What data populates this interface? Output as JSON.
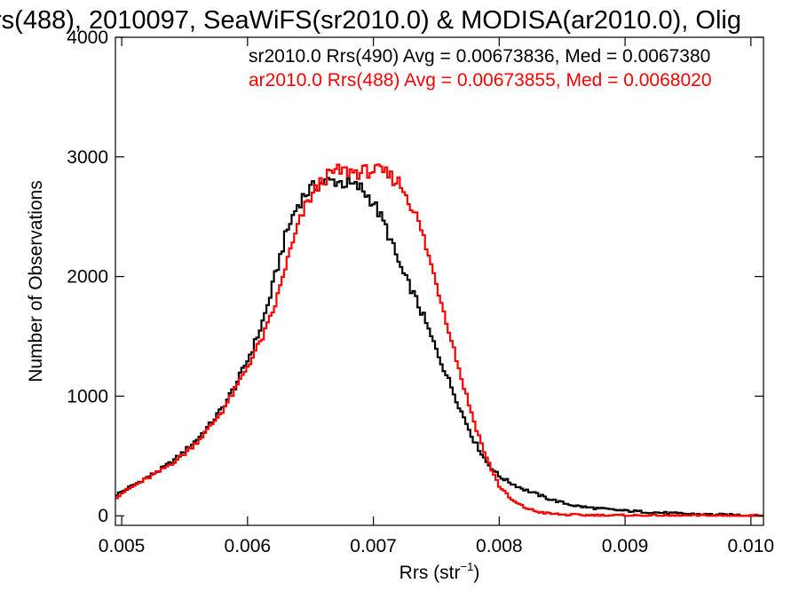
{
  "chart_data": {
    "type": "line",
    "step": true,
    "title": "rs(488), 2010097, SeaWiFS(sr2010.0) & MODISA(ar2010.0), Olig",
    "xlabel": "Rrs (str",
    "xlabel_sup": "−1",
    "xlabel_close": ")",
    "ylabel": "Number of Observations",
    "xlim": [
      0.00495,
      0.0101
    ],
    "ylim": [
      -80,
      4000
    ],
    "grid": false,
    "legend_position": "top-right",
    "x_ticks": [
      {
        "v": 0.005,
        "label": "0.005"
      },
      {
        "v": 0.006,
        "label": "0.006"
      },
      {
        "v": 0.007,
        "label": "0.007"
      },
      {
        "v": 0.008,
        "label": "0.008"
      },
      {
        "v": 0.009,
        "label": "0.009"
      },
      {
        "v": 0.01,
        "label": "0.010"
      }
    ],
    "y_ticks": [
      {
        "v": 0,
        "label": "0"
      },
      {
        "v": 1000,
        "label": "1000"
      },
      {
        "v": 2000,
        "label": "2000"
      },
      {
        "v": 3000,
        "label": "3000"
      },
      {
        "v": 4000,
        "label": "4000"
      }
    ],
    "series": [
      {
        "name": "sr2010.0 Rrs(490) Avg = 0.00673836, Med = 0.0067380",
        "color": "#000000",
        "x": [
          0.00495,
          0.005,
          0.0051,
          0.0052,
          0.0053,
          0.0054,
          0.0055,
          0.0056,
          0.0057,
          0.0058,
          0.0059,
          0.006,
          0.00605,
          0.0061,
          0.00615,
          0.0062,
          0.00625,
          0.0063,
          0.00635,
          0.0064,
          0.00645,
          0.0065,
          0.0066,
          0.0067,
          0.0068,
          0.0069,
          0.007,
          0.0071,
          0.0072,
          0.00725,
          0.0073,
          0.00735,
          0.0074,
          0.00745,
          0.0075,
          0.0076,
          0.0077,
          0.0078,
          0.0079,
          0.008,
          0.0081,
          0.0082,
          0.0083,
          0.0084,
          0.0085,
          0.0086,
          0.0087,
          0.0088,
          0.0089,
          0.009,
          0.0091,
          0.0092,
          0.0093,
          0.0094,
          0.0095,
          0.0096,
          0.0097,
          0.0098,
          0.0099,
          0.01,
          0.0101
        ],
        "y": [
          170,
          200,
          260,
          320,
          380,
          450,
          540,
          640,
          760,
          900,
          1080,
          1300,
          1420,
          1560,
          1720,
          1920,
          2130,
          2330,
          2480,
          2600,
          2680,
          2730,
          2790,
          2800,
          2770,
          2740,
          2620,
          2410,
          2120,
          1990,
          1900,
          1780,
          1660,
          1520,
          1390,
          1130,
          870,
          630,
          450,
          330,
          270,
          220,
          180,
          140,
          110,
          85,
          70,
          60,
          50,
          42,
          36,
          30,
          25,
          20,
          16,
          12,
          10,
          8,
          6,
          5,
          4
        ]
      },
      {
        "name": "ar2010.0 Rrs(488) Avg = 0.00673855, Med = 0.0068020",
        "color": "#ff0000",
        "x": [
          0.00495,
          0.005,
          0.0051,
          0.0052,
          0.0053,
          0.0054,
          0.0055,
          0.0056,
          0.0057,
          0.0058,
          0.0059,
          0.006,
          0.00605,
          0.0061,
          0.00615,
          0.0062,
          0.00625,
          0.0063,
          0.00635,
          0.0064,
          0.00645,
          0.0065,
          0.0066,
          0.0067,
          0.0068,
          0.0069,
          0.007,
          0.0071,
          0.0072,
          0.00725,
          0.0073,
          0.00735,
          0.0074,
          0.00745,
          0.0075,
          0.0076,
          0.0077,
          0.0078,
          0.0079,
          0.008,
          0.0081,
          0.0082,
          0.0083,
          0.0084,
          0.0085,
          0.0086,
          0.0087,
          0.0088,
          0.0089,
          0.009,
          0.0091,
          0.0092,
          0.0093,
          0.0094,
          0.0095,
          0.0096,
          0.0097,
          0.0098,
          0.0099,
          0.01,
          0.0101
        ],
        "y": [
          150,
          190,
          250,
          310,
          370,
          440,
          520,
          620,
          740,
          880,
          1050,
          1250,
          1350,
          1450,
          1560,
          1700,
          1870,
          2080,
          2240,
          2410,
          2560,
          2660,
          2810,
          2880,
          2880,
          2870,
          2890,
          2860,
          2790,
          2710,
          2600,
          2480,
          2320,
          2130,
          1950,
          1560,
          1150,
          790,
          480,
          250,
          130,
          70,
          35,
          18,
          10,
          7,
          5,
          4,
          3,
          2,
          2,
          1,
          1,
          1,
          1,
          1,
          1,
          1,
          1,
          1,
          1
        ]
      }
    ]
  }
}
